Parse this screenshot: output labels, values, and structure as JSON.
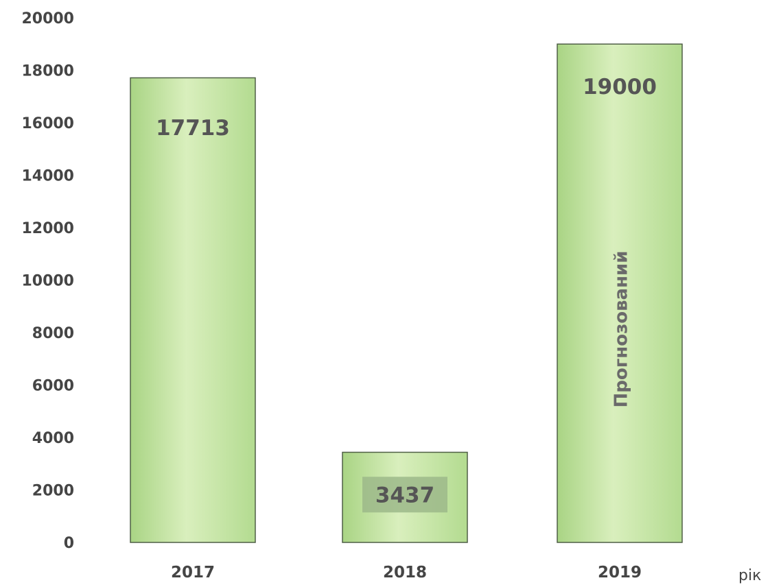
{
  "chart_data": {
    "type": "bar",
    "categories": [
      "2017",
      "2018",
      "2019"
    ],
    "values": [
      17713,
      3437,
      19000
    ],
    "data_labels": [
      "17713",
      "3437",
      "19000"
    ],
    "bar_note": {
      "category": "2019",
      "text": "Прогнозований"
    },
    "title": "",
    "xlabel": "рік",
    "ylabel": "",
    "ylim": [
      0,
      20000
    ],
    "yticks": [
      "0",
      "2000",
      "4000",
      "6000",
      "8000",
      "10000",
      "12000",
      "14000",
      "16000",
      "18000",
      "20000"
    ],
    "grid": false,
    "legend": "none",
    "colors": {
      "bar_light": "#e6f4cf",
      "bar_mid": "#c5e5a0",
      "bar_dark": "#a9d484",
      "bar_edge": "#4f5f46",
      "label_box": "#9cb98a",
      "text": "#454545"
    }
  }
}
